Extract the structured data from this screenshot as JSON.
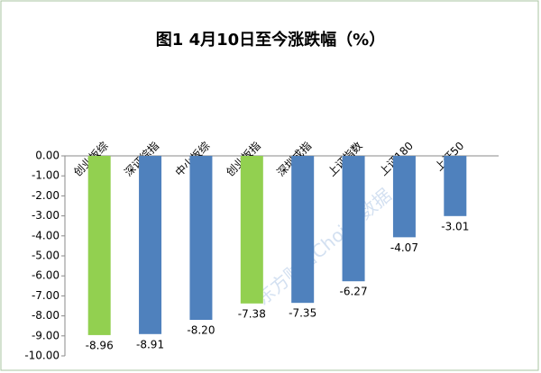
{
  "chart_data": {
    "type": "bar",
    "title": "图1  4月10日至今涨跌幅（%）",
    "categories": [
      "创业板综",
      "深证综指",
      "中小板综",
      "创业板指",
      "深圳成指",
      "上证指数",
      "上证180",
      "上证50"
    ],
    "values": [
      -8.96,
      -8.91,
      -8.2,
      -7.38,
      -7.35,
      -6.27,
      -4.07,
      -3.01
    ],
    "value_labels": [
      "-8.96",
      "-8.91",
      "-8.20",
      "-7.38",
      "-7.35",
      "-6.27",
      "-4.07",
      "-3.01"
    ],
    "colors": [
      "#92d050",
      "#4f81bd",
      "#4f81bd",
      "#92d050",
      "#4f81bd",
      "#4f81bd",
      "#4f81bd",
      "#4f81bd"
    ],
    "ylim": [
      -10,
      0
    ],
    "yticks": [
      {
        "value": 0,
        "label": "0.00"
      },
      {
        "value": -1,
        "label": "-1.00"
      },
      {
        "value": -2,
        "label": "-2.00"
      },
      {
        "value": -3,
        "label": "-3.00"
      },
      {
        "value": -4,
        "label": "-4.00"
      },
      {
        "value": -5,
        "label": "-5.00"
      },
      {
        "value": -6,
        "label": "-6.00"
      },
      {
        "value": -7,
        "label": "-7.00"
      },
      {
        "value": -8,
        "label": "-8.00"
      },
      {
        "value": -9,
        "label": "-9.00"
      },
      {
        "value": -10,
        "label": "-10.00"
      }
    ],
    "watermark": "东方财富Choice数据",
    "grid": false
  }
}
